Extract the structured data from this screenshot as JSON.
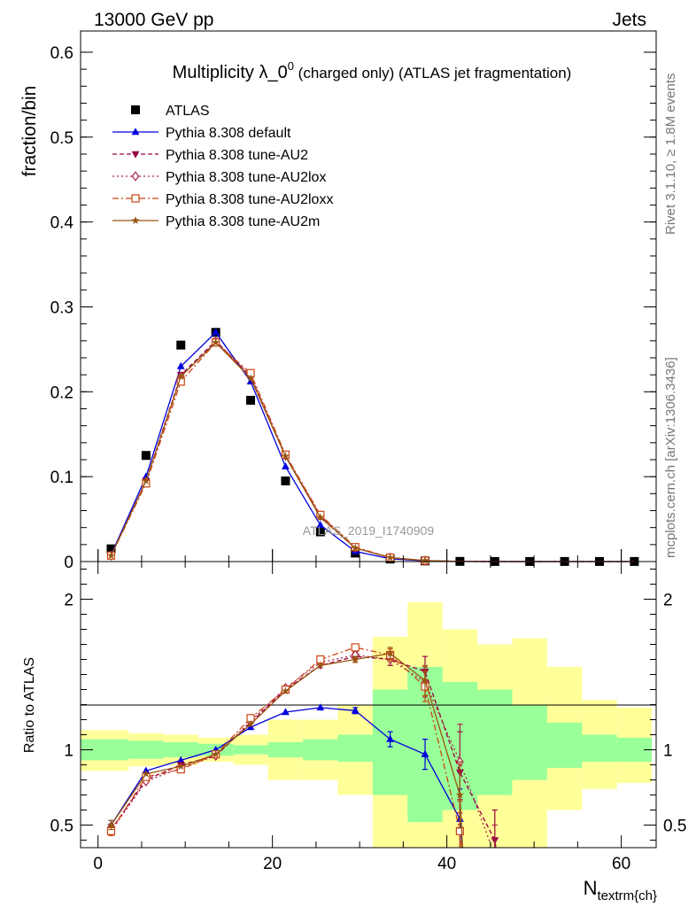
{
  "header": {
    "left": "13000 GeV pp",
    "right": "Jets"
  },
  "side_labels": {
    "rivet": "Rivet 3.1.10, ≥ 1.8M events",
    "mcplots": "mcplots.cern.ch [arXiv:1306.3436]"
  },
  "watermark": "ATLAS_2019_I1740909",
  "chart_data": [
    {
      "type": "scatter",
      "panel": "main",
      "title": "Multiplicity λ_0^0 (charged only) (ATLAS jet fragmentation)",
      "title_main": "Multiplicity λ_0",
      "title_sup": "0",
      "title_rest": " (charged only) (ATLAS jet fragmentation)",
      "ylabel": "fraction/bin",
      "xlim": [
        -2,
        64
      ],
      "ylim": [
        0,
        0.625
      ],
      "yticks": [
        0,
        0.1,
        0.2,
        0.3,
        0.4,
        0.5,
        0.6
      ],
      "ytick_labels": [
        "0",
        "0.1",
        "0.2",
        "0.3",
        "0.4",
        "0.5",
        "0.6"
      ],
      "legend_position": "top-left",
      "x": [
        1.5,
        5.5,
        9.5,
        13.5,
        17.5,
        21.5,
        25.5,
        29.5,
        33.5,
        37.5,
        41.5,
        45.5,
        49.5,
        53.5,
        57.5,
        61.5
      ],
      "series": [
        {
          "name": "ATLAS",
          "color": "#000000",
          "marker": "square-filled",
          "line": "none",
          "values": [
            0.015,
            0.125,
            0.255,
            0.27,
            0.19,
            0.095,
            0.035,
            0.01,
            0.003,
            0.0008,
            0.0002,
            0.0001,
            0.0001,
            0.0001,
            0.0001,
            0.0001
          ]
        },
        {
          "name": "Pythia 8.308 default",
          "color": "#0000dd",
          "marker": "triangle-up-filled",
          "line": "solid",
          "values": [
            0.008,
            0.1,
            0.23,
            0.27,
            0.212,
            0.112,
            0.043,
            0.012,
            0.0032,
            0.0008,
            0.0001,
            0.0,
            0.0,
            0.0,
            0.0,
            0.0
          ]
        },
        {
          "name": "Pythia 8.308 tune-AU2",
          "color": "#990044",
          "marker": "triangle-down-filled",
          "line": "dashed",
          "values": [
            0.007,
            0.095,
            0.22,
            0.26,
            0.218,
            0.124,
            0.053,
            0.016,
            0.0046,
            0.0011,
            0.0002,
            4e-05,
            0.0,
            0.0,
            0.0,
            0.0
          ]
        },
        {
          "name": "Pythia 8.308 tune-AU2lox",
          "color": "#aa2244",
          "marker": "diamond-open",
          "line": "dotted",
          "values": [
            0.007,
            0.094,
            0.218,
            0.259,
            0.219,
            0.125,
            0.054,
            0.016,
            0.0046,
            0.0011,
            0.0002,
            3e-05,
            0.0,
            0.0,
            0.0,
            0.0
          ]
        },
        {
          "name": "Pythia 8.308 tune-AU2loxx",
          "color": "#cc4411",
          "marker": "square-open",
          "line": "dashdot",
          "values": [
            0.007,
            0.092,
            0.212,
            0.258,
            0.222,
            0.126,
            0.055,
            0.017,
            0.0047,
            0.0011,
            0.0001,
            0.0,
            0.0,
            0.0,
            0.0,
            0.0
          ]
        },
        {
          "name": "Pythia 8.308 tune-AU2m",
          "color": "#995511",
          "marker": "star-filled",
          "line": "solid",
          "values": [
            0.007,
            0.095,
            0.218,
            0.258,
            0.216,
            0.124,
            0.052,
            0.016,
            0.0046,
            0.0011,
            0.0001,
            0.0,
            0.0,
            0.0,
            0.0,
            0.0
          ]
        }
      ]
    },
    {
      "type": "scatter",
      "panel": "ratio",
      "ylabel": "Ratio to ATLAS",
      "xlabel": "N",
      "xlabel_sub": "textrm{ch}",
      "xlim": [
        -2,
        64
      ],
      "ylim": [
        0.35,
        2.25
      ],
      "yticks": [
        0.5,
        1,
        2
      ],
      "ytick_labels": [
        "0.5",
        "1",
        "2"
      ],
      "xticks": [
        0,
        20,
        40,
        60
      ],
      "xtick_labels": [
        "0",
        "20",
        "40",
        "60"
      ],
      "bands": {
        "edges": [
          -2,
          3.5,
          7.5,
          11.5,
          15.5,
          19.5,
          23.5,
          27.5,
          31.5,
          35.5,
          39.5,
          43.5,
          47.5,
          51.5,
          55.5,
          59.5,
          63.5
        ],
        "green_low": [
          0.93,
          0.94,
          0.95,
          0.96,
          0.97,
          0.95,
          0.93,
          0.92,
          0.7,
          0.52,
          0.6,
          0.7,
          0.8,
          0.88,
          0.92,
          0.92
        ],
        "green_high": [
          1.07,
          1.06,
          1.05,
          1.04,
          1.03,
          1.05,
          1.07,
          1.1,
          1.4,
          1.55,
          1.45,
          1.4,
          1.3,
          1.18,
          1.1,
          1.08
        ],
        "yellow_low": [
          0.86,
          0.89,
          0.9,
          0.92,
          0.9,
          0.8,
          0.8,
          0.7,
          0.35,
          0.35,
          0.35,
          0.35,
          0.35,
          0.6,
          0.74,
          0.78
        ],
        "yellow_high": [
          1.13,
          1.11,
          1.1,
          1.08,
          1.1,
          1.2,
          1.2,
          1.3,
          1.75,
          1.98,
          1.8,
          1.7,
          1.74,
          1.55,
          1.33,
          1.28
        ]
      },
      "x": [
        1.5,
        5.5,
        9.5,
        13.5,
        17.5,
        21.5,
        25.5,
        29.5,
        33.5,
        37.5,
        41.5,
        45.5
      ],
      "series": [
        {
          "name": "Pythia 8.308 default",
          "color": "#0000dd",
          "marker": "triangle-up-filled",
          "line": "solid",
          "values": [
            0.5,
            0.86,
            0.93,
            1.0,
            1.15,
            1.25,
            1.28,
            1.26,
            1.07,
            0.97,
            0.54,
            null
          ],
          "errors": [
            0.03,
            0.01,
            0.01,
            0.01,
            0.01,
            0.01,
            0.01,
            0.02,
            0.05,
            0.1,
            0.2,
            null
          ]
        },
        {
          "name": "Pythia 8.308 tune-AU2",
          "color": "#990044",
          "marker": "triangle-down-filled",
          "line": "dashed",
          "values": [
            0.47,
            0.8,
            0.9,
            0.96,
            1.18,
            1.4,
            1.56,
            1.62,
            1.6,
            1.52,
            0.85,
            0.4
          ],
          "errors": [
            0.03,
            0.01,
            0.01,
            0.01,
            0.01,
            0.01,
            0.01,
            0.02,
            0.04,
            0.1,
            0.27,
            0.2
          ]
        },
        {
          "name": "Pythia 8.308 tune-AU2lox",
          "color": "#aa2244",
          "marker": "diamond-open",
          "line": "dotted",
          "values": [
            0.46,
            0.79,
            0.88,
            0.96,
            1.19,
            1.41,
            1.58,
            1.63,
            1.6,
            1.45,
            0.92,
            0.3
          ],
          "errors": [
            0.03,
            0.01,
            0.01,
            0.01,
            0.01,
            0.01,
            0.01,
            0.02,
            0.04,
            0.1,
            0.25,
            0.2
          ]
        },
        {
          "name": "Pythia 8.308 tune-AU2loxx",
          "color": "#cc4411",
          "marker": "square-open",
          "line": "dashdot",
          "values": [
            0.46,
            0.82,
            0.87,
            0.97,
            1.21,
            1.4,
            1.6,
            1.68,
            1.63,
            1.42,
            0.46,
            null
          ],
          "errors": [
            0.03,
            0.01,
            0.01,
            0.01,
            0.01,
            0.01,
            0.01,
            0.02,
            0.04,
            0.1,
            0.2,
            null
          ]
        },
        {
          "name": "Pythia 8.308 tune-AU2m",
          "color": "#995511",
          "marker": "star-filled",
          "line": "solid",
          "values": [
            0.5,
            0.84,
            0.89,
            0.97,
            1.17,
            1.39,
            1.56,
            1.6,
            1.64,
            1.46,
            0.7,
            null
          ],
          "errors": [
            0.03,
            0.01,
            0.01,
            0.01,
            0.01,
            0.01,
            0.01,
            0.02,
            0.04,
            0.1,
            0.22,
            null
          ]
        }
      ]
    }
  ]
}
